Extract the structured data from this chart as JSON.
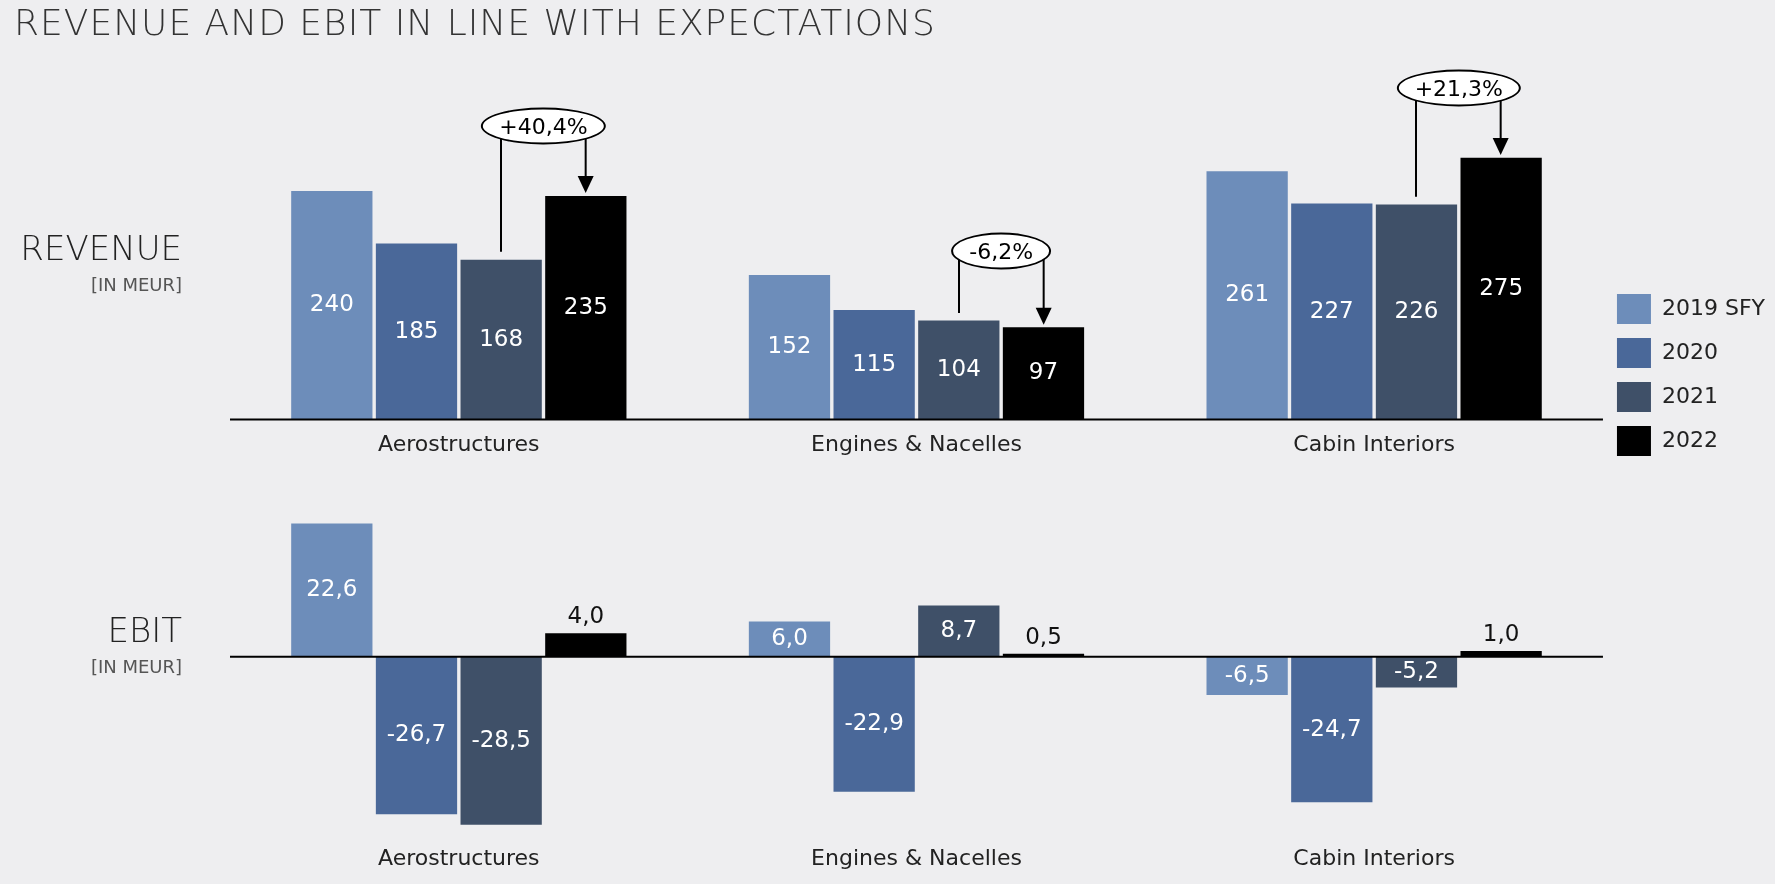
{
  "chart_data": [
    {
      "type": "bar",
      "title": "REVENUE AND EBIT IN LINE WITH EXPECTATIONS",
      "ylabel": "REVENUE",
      "categories": [
        "Aerostructures",
        "Engines & Nacelles",
        "Cabin Interiors"
      ],
      "legend": "right",
      "grid": false,
      "series": [
        {
          "name": "2019 SFY",
          "color": "#6d8dba",
          "values": [
            240,
            152,
            261
          ],
          "value_labels": [
            "240",
            "152",
            "261"
          ]
        },
        {
          "name": "2020",
          "color": "#4a6899",
          "values": [
            185,
            115,
            227
          ],
          "value_labels": [
            "185",
            "115",
            "227"
          ]
        },
        {
          "name": "2021",
          "color": "#3f5068",
          "values": [
            168,
            104,
            226
          ],
          "value_labels": [
            "168",
            "104",
            "226"
          ]
        },
        {
          "name": "2022",
          "color": "#000000",
          "values": [
            235,
            97,
            275
          ],
          "value_labels": [
            "235",
            "97",
            "275"
          ]
        }
      ],
      "subtitle": "[IN MEUR]",
      "annotations": [
        "+40,4%",
        "-6,2%",
        "+21,3%"
      ]
    },
    {
      "type": "bar",
      "ylabel": "EBIT",
      "categories": [
        "Aerostructures",
        "Engines & Nacelles",
        "Cabin Interiors"
      ],
      "grid": false,
      "series": [
        {
          "color": "#6d8dba",
          "values": [
            22.6,
            6.0,
            -6.5
          ],
          "value_labels": [
            "22,6",
            "6,0",
            "-6,5"
          ]
        },
        {
          "color": "#4a6899",
          "values": [
            -26.7,
            -22.9,
            -24.7
          ],
          "value_labels": [
            "-26,7",
            "-22,9",
            "-24,7"
          ]
        },
        {
          "color": "#3f5068",
          "values": [
            -28.5,
            8.7,
            -5.2
          ],
          "value_labels": [
            "-28,5",
            "8,7",
            "-5,2"
          ]
        },
        {
          "color": "#000000",
          "values": [
            4.0,
            0.5,
            1.0
          ],
          "value_labels": [
            "4,0",
            "0,5",
            "1,0"
          ]
        }
      ],
      "subtitle": "[IN MEUR]",
      "ref_lines": [
        {
          "axis": "y",
          "value": 0,
          "color": "#000000"
        }
      ]
    }
  ]
}
